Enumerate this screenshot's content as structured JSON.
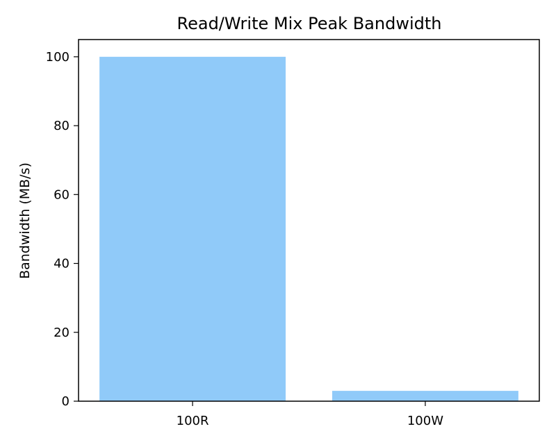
{
  "chart_data": {
    "type": "bar",
    "title": "Read/Write Mix Peak Bandwidth",
    "xlabel": "",
    "ylabel": "Bandwidth (MB/s)",
    "categories": [
      "100R",
      "100W"
    ],
    "values": [
      100,
      3
    ],
    "ylim": [
      0,
      105
    ],
    "yticks": [
      0,
      20,
      40,
      60,
      80,
      100
    ],
    "grid": false,
    "legend": "none",
    "bar_color": "#90caf9"
  }
}
